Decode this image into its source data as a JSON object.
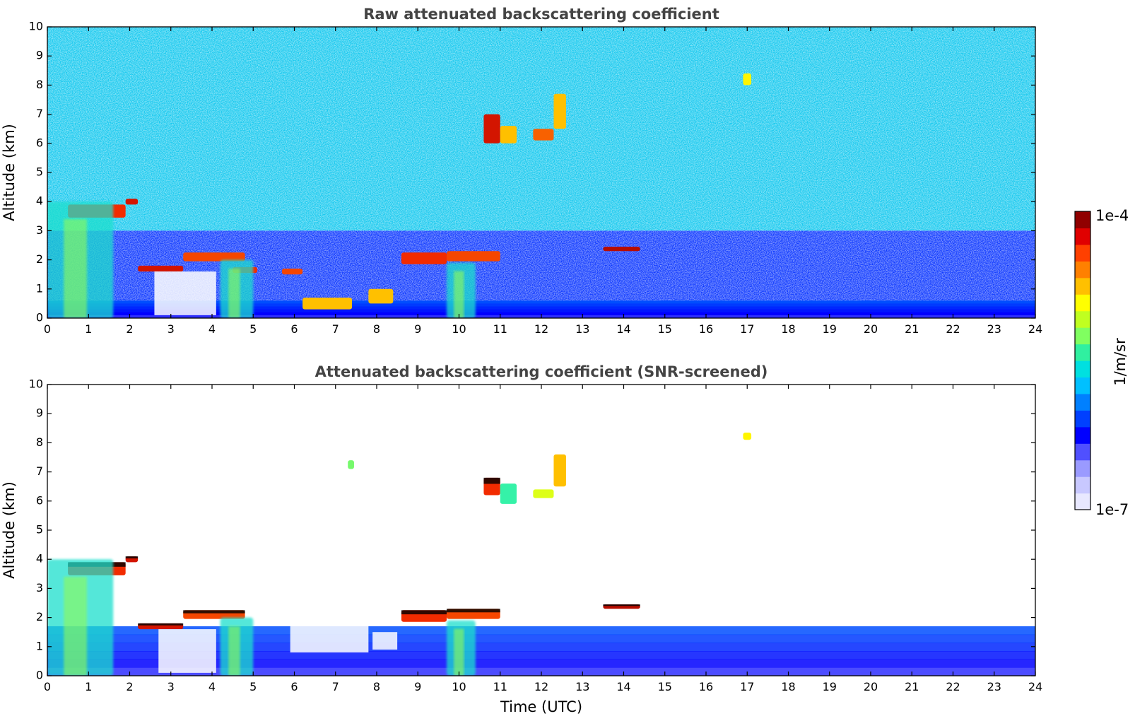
{
  "chart_data": [
    {
      "type": "heatmap",
      "title": "Raw attenuated backscattering coefficient",
      "xlabel": "",
      "ylabel": "Altitude (km)",
      "xlim": [
        0,
        24
      ],
      "ylim": [
        0,
        10
      ],
      "x_ticks": [
        "0",
        "1",
        "2",
        "3",
        "4",
        "5",
        "6",
        "7",
        "8",
        "9",
        "10",
        "11",
        "12",
        "13",
        "14",
        "15",
        "16",
        "17",
        "18",
        "19",
        "20",
        "21",
        "22",
        "23",
        "24"
      ],
      "y_ticks": [
        "0",
        "1",
        "2",
        "3",
        "4",
        "5",
        "6",
        "7",
        "8",
        "9",
        "10"
      ],
      "colorscale": "jet",
      "background_color": "#4da6ff",
      "features": [
        {
          "kind": "noise",
          "x": [
            0,
            24
          ],
          "y": [
            3,
            10
          ],
          "level": 0.45
        },
        {
          "kind": "noise",
          "x": [
            0,
            24
          ],
          "y": [
            0.6,
            3
          ],
          "level": 0.2
        },
        {
          "kind": "band",
          "x": [
            0,
            24
          ],
          "y": [
            0,
            0.6
          ],
          "level": 0.08
        },
        {
          "kind": "cloud",
          "x": [
            0.5,
            1.9
          ],
          "y": [
            3.45,
            3.9
          ],
          "level": 0.92
        },
        {
          "kind": "cloud",
          "x": [
            1.9,
            2.2
          ],
          "y": [
            3.9,
            4.1
          ],
          "level": 0.95
        },
        {
          "kind": "cloud",
          "x": [
            2.2,
            3.3
          ],
          "y": [
            1.6,
            1.8
          ],
          "level": 0.95
        },
        {
          "kind": "cloud",
          "x": [
            3.3,
            4.8
          ],
          "y": [
            1.95,
            2.25
          ],
          "level": 0.9
        },
        {
          "kind": "cloud",
          "x": [
            4.5,
            5.1
          ],
          "y": [
            1.55,
            1.75
          ],
          "level": 0.92
        },
        {
          "kind": "cloud",
          "x": [
            5.7,
            6.2
          ],
          "y": [
            1.5,
            1.7
          ],
          "level": 0.9
        },
        {
          "kind": "cloud",
          "x": [
            6.2,
            7.4
          ],
          "y": [
            0.3,
            0.7
          ],
          "level": 0.8
        },
        {
          "kind": "cloud",
          "x": [
            7.8,
            8.4
          ],
          "y": [
            0.5,
            1.0
          ],
          "level": 0.8
        },
        {
          "kind": "cloud",
          "x": [
            8.6,
            9.7
          ],
          "y": [
            1.85,
            2.25
          ],
          "level": 0.92
        },
        {
          "kind": "cloud",
          "x": [
            9.7,
            11.0
          ],
          "y": [
            1.95,
            2.3
          ],
          "level": 0.9
        },
        {
          "kind": "cloud",
          "x": [
            10.6,
            11.0
          ],
          "y": [
            6.0,
            7.0
          ],
          "level": 0.95
        },
        {
          "kind": "cloud",
          "x": [
            11.0,
            11.4
          ],
          "y": [
            6.0,
            6.6
          ],
          "level": 0.8
        },
        {
          "kind": "cloud",
          "x": [
            11.8,
            12.3
          ],
          "y": [
            6.1,
            6.5
          ],
          "level": 0.88
        },
        {
          "kind": "cloud",
          "x": [
            12.3,
            12.6
          ],
          "y": [
            6.5,
            7.7
          ],
          "level": 0.8
        },
        {
          "kind": "cloud",
          "x": [
            13.5,
            14.4
          ],
          "y": [
            2.3,
            2.45
          ],
          "level": 0.97
        },
        {
          "kind": "cloud",
          "x": [
            16.9,
            17.1
          ],
          "y": [
            8.0,
            8.4
          ],
          "level": 0.75
        },
        {
          "kind": "aerosol",
          "x": [
            0,
            1.6
          ],
          "y": [
            0,
            4.0
          ],
          "level": 0.5
        },
        {
          "kind": "aerosol",
          "x": [
            4.2,
            5.0
          ],
          "y": [
            0,
            2.0
          ],
          "level": 0.5
        },
        {
          "kind": "aerosol",
          "x": [
            9.7,
            10.4
          ],
          "y": [
            0,
            1.9
          ],
          "level": 0.5
        },
        {
          "kind": "gap",
          "x": [
            2.6,
            4.1
          ],
          "y": [
            0.1,
            1.6
          ]
        }
      ]
    },
    {
      "type": "heatmap",
      "title": "Attenuated backscattering coefficient (SNR-screened)",
      "xlabel": "Time (UTC)",
      "ylabel": "Altitude (km)",
      "xlim": [
        0,
        24
      ],
      "ylim": [
        0,
        10
      ],
      "x_ticks": [
        "0",
        "1",
        "2",
        "3",
        "4",
        "5",
        "6",
        "7",
        "8",
        "9",
        "10",
        "11",
        "12",
        "13",
        "14",
        "15",
        "16",
        "17",
        "18",
        "19",
        "20",
        "21",
        "22",
        "23",
        "24"
      ],
      "y_ticks": [
        "0",
        "1",
        "2",
        "3",
        "4",
        "5",
        "6",
        "7",
        "8",
        "9",
        "10"
      ],
      "colorscale": "jet",
      "background_color": "#ffffff",
      "features": [
        {
          "kind": "band",
          "x": [
            0,
            24
          ],
          "y": [
            0,
            1.7
          ],
          "level": 0.08
        },
        {
          "kind": "cloud",
          "x": [
            0.5,
            1.9
          ],
          "y": [
            3.45,
            3.9
          ],
          "level": 0.92
        },
        {
          "kind": "cloud",
          "x": [
            1.9,
            2.2
          ],
          "y": [
            3.9,
            4.1
          ],
          "level": 0.95
        },
        {
          "kind": "cloud",
          "x": [
            2.2,
            3.3
          ],
          "y": [
            1.6,
            1.8
          ],
          "level": 0.95
        },
        {
          "kind": "cloud",
          "x": [
            3.3,
            4.8
          ],
          "y": [
            1.95,
            2.25
          ],
          "level": 0.9
        },
        {
          "kind": "cloud",
          "x": [
            8.6,
            9.7
          ],
          "y": [
            1.85,
            2.25
          ],
          "level": 0.92
        },
        {
          "kind": "cloud",
          "x": [
            9.7,
            11.0
          ],
          "y": [
            1.95,
            2.3
          ],
          "level": 0.9
        },
        {
          "kind": "cloud",
          "x": [
            10.6,
            11.0
          ],
          "y": [
            6.2,
            6.8
          ],
          "level": 0.92
        },
        {
          "kind": "cloud",
          "x": [
            11.0,
            11.4
          ],
          "y": [
            5.9,
            6.6
          ],
          "level": 0.55
        },
        {
          "kind": "cloud",
          "x": [
            11.8,
            12.3
          ],
          "y": [
            6.1,
            6.4
          ],
          "level": 0.7
        },
        {
          "kind": "cloud",
          "x": [
            12.3,
            12.6
          ],
          "y": [
            6.5,
            7.6
          ],
          "level": 0.8
        },
        {
          "kind": "cloud",
          "x": [
            13.5,
            14.4
          ],
          "y": [
            2.3,
            2.45
          ],
          "level": 0.97
        },
        {
          "kind": "cloud",
          "x": [
            16.9,
            17.1
          ],
          "y": [
            8.1,
            8.35
          ],
          "level": 0.75
        },
        {
          "kind": "cloud",
          "x": [
            7.3,
            7.45
          ],
          "y": [
            7.1,
            7.4
          ],
          "level": 0.6
        },
        {
          "kind": "aerosol",
          "x": [
            0,
            1.6
          ],
          "y": [
            0,
            4.0
          ],
          "level": 0.5
        },
        {
          "kind": "aerosol",
          "x": [
            4.2,
            5.0
          ],
          "y": [
            0,
            2.0
          ],
          "level": 0.5
        },
        {
          "kind": "aerosol",
          "x": [
            9.7,
            10.4
          ],
          "y": [
            0,
            1.9
          ],
          "level": 0.5
        },
        {
          "kind": "gap",
          "x": [
            2.7,
            4.1
          ],
          "y": [
            0.1,
            1.6
          ]
        },
        {
          "kind": "gap",
          "x": [
            5.9,
            7.8
          ],
          "y": [
            0.8,
            2.0
          ]
        },
        {
          "kind": "gap",
          "x": [
            7.9,
            8.5
          ],
          "y": [
            0.9,
            1.5
          ]
        }
      ]
    }
  ],
  "colorbar": {
    "label": "1/m/sr",
    "max_label": "1e-4",
    "min_label": "1e-7",
    "colors": [
      "#e8e8ff",
      "#c8c8ff",
      "#9a9aff",
      "#5050ff",
      "#0000ff",
      "#0040ff",
      "#0080ff",
      "#00c0ff",
      "#00e0e0",
      "#30f0a0",
      "#80ff60",
      "#c0ff20",
      "#ffff00",
      "#ffc000",
      "#ff8000",
      "#ff4000",
      "#e00000",
      "#900000"
    ]
  }
}
